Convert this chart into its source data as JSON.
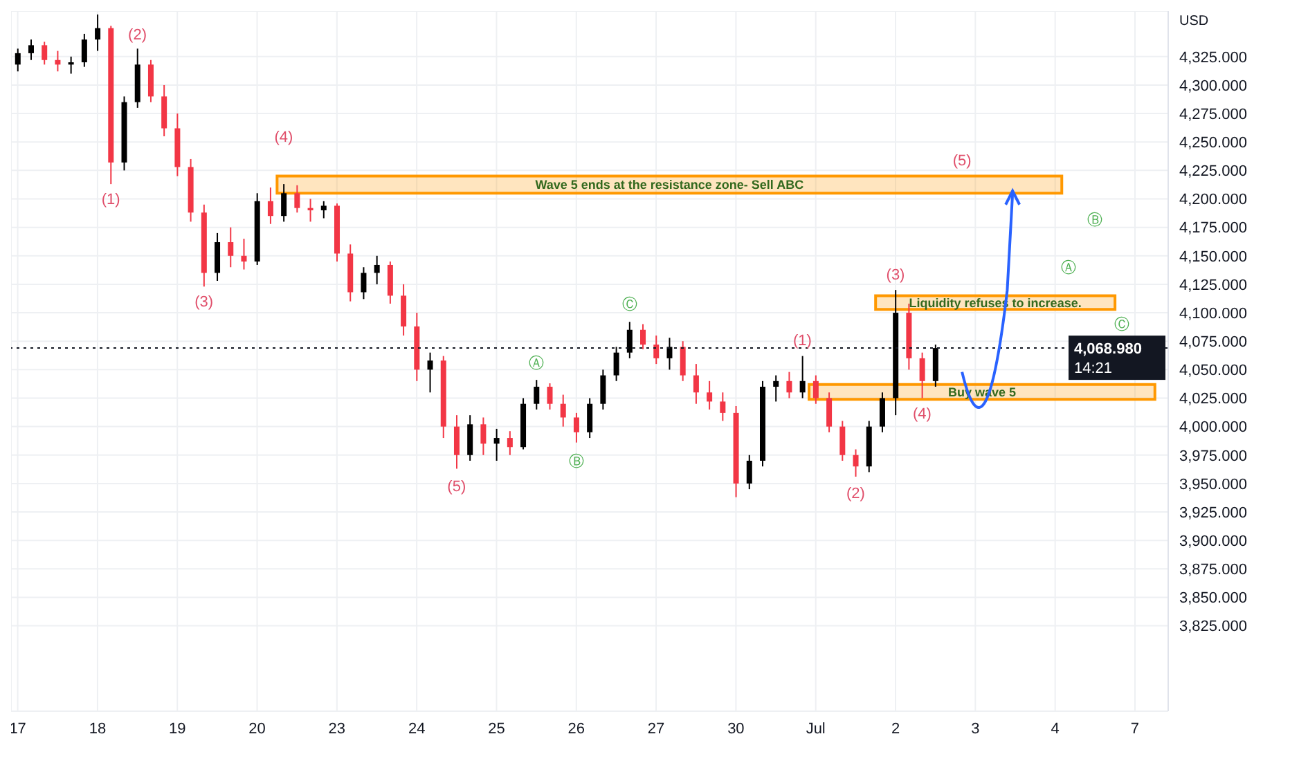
{
  "chart_data": {
    "type": "candlestick",
    "ylabel": "USD",
    "categories": [
      "17",
      null,
      null,
      null,
      null,
      null,
      "18",
      null,
      null,
      null,
      null,
      null,
      "19",
      null,
      null,
      null,
      null,
      null,
      "20",
      null,
      null,
      null,
      null,
      null,
      "23",
      null,
      null,
      null,
      null,
      null,
      "24",
      null,
      null,
      null,
      null,
      null,
      "25",
      null,
      null,
      null,
      null,
      null,
      "26",
      null,
      null,
      null,
      null,
      null,
      "27",
      null,
      null,
      null,
      null,
      null,
      "30",
      null,
      null,
      null,
      null,
      null,
      "Jul",
      null,
      null,
      null,
      null,
      null,
      "2",
      null,
      null,
      null,
      null,
      null,
      "3",
      null,
      null,
      null,
      null,
      null,
      "4",
      null,
      null,
      null,
      null,
      null,
      "7",
      null,
      null
    ],
    "ohlc": [
      [
        4318,
        4332,
        4312,
        4328
      ],
      [
        4328,
        4340,
        4322,
        4335
      ],
      [
        4335,
        4338,
        4318,
        4322
      ],
      [
        4322,
        4330,
        4312,
        4318
      ],
      [
        4318,
        4325,
        4310,
        4320
      ],
      [
        4320,
        4345,
        4316,
        4340
      ],
      [
        4340,
        4362,
        4330,
        4350
      ],
      [
        4350,
        4352,
        4213,
        4232
      ],
      [
        4232,
        4290,
        4225,
        4285
      ],
      [
        4285,
        4332,
        4280,
        4318
      ],
      [
        4318,
        4322,
        4285,
        4290
      ],
      [
        4290,
        4300,
        4255,
        4262
      ],
      [
        4262,
        4275,
        4220,
        4228
      ],
      [
        4228,
        4235,
        4180,
        4188
      ],
      [
        4188,
        4195,
        4123,
        4135
      ],
      [
        4135,
        4170,
        4128,
        4162
      ],
      [
        4162,
        4175,
        4140,
        4150
      ],
      [
        4150,
        4165,
        4138,
        4145
      ],
      [
        4145,
        4205,
        4142,
        4198
      ],
      [
        4198,
        4210,
        4178,
        4185
      ],
      [
        4185,
        4213,
        4180,
        4205
      ],
      [
        4205,
        4212,
        4188,
        4192
      ],
      [
        4192,
        4200,
        4180,
        4190
      ],
      [
        4190,
        4198,
        4183,
        4194
      ],
      [
        4194,
        4196,
        4145,
        4152
      ],
      [
        4152,
        4160,
        4110,
        4118
      ],
      [
        4118,
        4140,
        4112,
        4135
      ],
      [
        4135,
        4150,
        4125,
        4142
      ],
      [
        4142,
        4145,
        4108,
        4115
      ],
      [
        4115,
        4125,
        4080,
        4088
      ],
      [
        4088,
        4100,
        4040,
        4050
      ],
      [
        4050,
        4065,
        4030,
        4058
      ],
      [
        4058,
        4062,
        3990,
        4000
      ],
      [
        4000,
        4010,
        3963,
        3975
      ],
      [
        3975,
        4010,
        3970,
        4002
      ],
      [
        4002,
        4008,
        3975,
        3985
      ],
      [
        3985,
        3998,
        3970,
        3990
      ],
      [
        3990,
        3996,
        3975,
        3982
      ],
      [
        3982,
        4025,
        3980,
        4020
      ],
      [
        4020,
        4041,
        4015,
        4035
      ],
      [
        4035,
        4038,
        4015,
        4020
      ],
      [
        4020,
        4028,
        4000,
        4008
      ],
      [
        4008,
        4012,
        3986,
        3995
      ],
      [
        3995,
        4025,
        3990,
        4020
      ],
      [
        4020,
        4050,
        4015,
        4045
      ],
      [
        4045,
        4070,
        4040,
        4065
      ],
      [
        4065,
        4092,
        4060,
        4085
      ],
      [
        4085,
        4090,
        4068,
        4072
      ],
      [
        4072,
        4080,
        4055,
        4060
      ],
      [
        4060,
        4078,
        4050,
        4070
      ],
      [
        4070,
        4075,
        4040,
        4045
      ],
      [
        4045,
        4055,
        4020,
        4030
      ],
      [
        4030,
        4040,
        4015,
        4022
      ],
      [
        4022,
        4030,
        4005,
        4012
      ],
      [
        4012,
        4018,
        3938,
        3950
      ],
      [
        3950,
        3975,
        3945,
        3970
      ],
      [
        3970,
        4040,
        3965,
        4035
      ],
      [
        4035,
        4045,
        4022,
        4040
      ],
      [
        4040,
        4048,
        4025,
        4030
      ],
      [
        4030,
        4062,
        4025,
        4040
      ],
      [
        4040,
        4045,
        4020,
        4025
      ],
      [
        4025,
        4030,
        3995,
        4000
      ],
      [
        4000,
        4005,
        3970,
        3975
      ],
      [
        3975,
        3980,
        3956,
        3965
      ],
      [
        3965,
        4005,
        3960,
        4000
      ],
      [
        4000,
        4030,
        3995,
        4025
      ],
      [
        4025,
        4120,
        4010,
        4100
      ],
      [
        4100,
        4108,
        4050,
        4060
      ],
      [
        4060,
        4065,
        4025,
        4040
      ],
      [
        4040,
        4072,
        4035,
        4068.98
      ],
      null,
      null,
      null,
      null,
      null,
      null,
      null,
      null,
      null,
      null,
      null,
      null,
      null,
      null,
      null,
      null,
      null
    ],
    "colors": [
      "#000000",
      "#000000",
      "#f23645",
      "#f23645",
      "#000000",
      "#000000",
      "#000000",
      "#f23645",
      "#000000",
      "#000000",
      "#f23645",
      "#f23645",
      "#f23645",
      "#f23645",
      "#f23645",
      "#000000",
      "#f23645",
      "#f23645",
      "#000000",
      "#f23645",
      "#000000",
      "#f23645",
      "#f23645",
      "#000000",
      "#f23645",
      "#f23645",
      "#000000",
      "#000000",
      "#f23645",
      "#f23645",
      "#f23645",
      "#000000",
      "#f23645",
      "#f23645",
      "#000000",
      "#f23645",
      "#000000",
      "#f23645",
      "#000000",
      "#000000",
      "#f23645",
      "#f23645",
      "#f23645",
      "#000000",
      "#000000",
      "#000000",
      "#000000",
      "#f23645",
      "#f23645",
      "#000000",
      "#f23645",
      "#f23645",
      "#f23645",
      "#f23645",
      "#f23645",
      "#000000",
      "#000000",
      "#000000",
      "#f23645",
      "#000000",
      "#f23645",
      "#f23645",
      "#f23645",
      "#f23645",
      "#000000",
      "#000000",
      "#000000",
      "#f23645",
      "#f23645",
      "#000000",
      null,
      null,
      null,
      null,
      null,
      null,
      null,
      null,
      null,
      null,
      null,
      null,
      null,
      null,
      null,
      null,
      null
    ],
    "ylim": [
      3750,
      4365
    ],
    "yticks": [
      {
        "value": 3825,
        "label": "3,825.000"
      },
      {
        "value": 3850,
        "label": "3,850.000"
      },
      {
        "value": 3875,
        "label": "3,875.000"
      },
      {
        "value": 3900,
        "label": "3,900.000"
      },
      {
        "value": 3925,
        "label": "3,925.000"
      },
      {
        "value": 3950,
        "label": "3,950.000"
      },
      {
        "value": 3975,
        "label": "3,975.000"
      },
      {
        "value": 4000,
        "label": "4,000.000"
      },
      {
        "value": 4025,
        "label": "4,025.000"
      },
      {
        "value": 4050,
        "label": "4,050.000"
      },
      {
        "value": 4075,
        "label": "4,075.000"
      },
      {
        "value": 4100,
        "label": "4,100.000"
      },
      {
        "value": 4125,
        "label": "4,125.000"
      },
      {
        "value": 4150,
        "label": "4,150.000"
      },
      {
        "value": 4175,
        "label": "4,175.000"
      },
      {
        "value": 4200,
        "label": "4,200.000"
      },
      {
        "value": 4225,
        "label": "4,225.000"
      },
      {
        "value": 4250,
        "label": "4,250.000"
      },
      {
        "value": 4275,
        "label": "4,275.000"
      },
      {
        "value": 4300,
        "label": "4,300.000"
      },
      {
        "value": 4325,
        "label": "4,325.000"
      }
    ],
    "grid": true,
    "ref_lines": [
      {
        "axis": "y",
        "value": 4068.98,
        "label": "4,068.980",
        "color": "#131722",
        "line_style": "dotted"
      }
    ],
    "bands": [
      {
        "axis": "y",
        "from": 4205,
        "to": 4220,
        "label": "Wave 5 ends at the resistance zone- Sell ABC",
        "color": "#ff9800"
      },
      {
        "axis": "y",
        "from": 4103,
        "to": 4115,
        "label": "Liquidity refuses to increase.",
        "color": "#ff9800"
      },
      {
        "axis": "y",
        "from": 4024,
        "to": 4037,
        "label": "Buy wave 5",
        "color": "#ff9800"
      }
    ],
    "annotations": [
      "(1)",
      "(2)",
      "(3)",
      "(4)",
      "(5)",
      "Ⓐ",
      "Ⓑ",
      "Ⓒ",
      "(1)",
      "(2)",
      "(3)",
      "(4)",
      "(5)",
      "Ⓐ",
      "Ⓑ",
      "Ⓒ",
      "14:21"
    ]
  }
}
